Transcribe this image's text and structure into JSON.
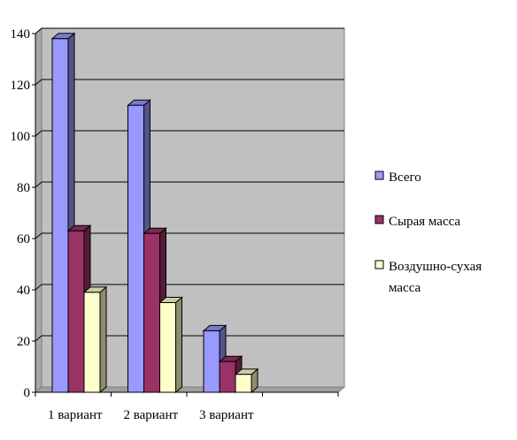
{
  "chart_data": {
    "type": "bar",
    "categories": [
      "1 вариант",
      "2 вариант",
      "3 вариант"
    ],
    "series": [
      {
        "name": "Всего",
        "values": [
          138,
          112,
          24
        ],
        "color": "#9999ff"
      },
      {
        "name": "Сырая масса",
        "values": [
          63,
          62,
          12
        ],
        "color": "#993366"
      },
      {
        "name": "Воздушно-сухая масса",
        "values": [
          39,
          35,
          7
        ],
        "color": "#ffffcc"
      }
    ],
    "legend_lines": [
      [
        "Всего"
      ],
      [
        "Сырая масса"
      ],
      [
        "Воздушно-сухая",
        "масса"
      ]
    ],
    "yticks": [
      "0",
      "20",
      "40",
      "60",
      "80",
      "100",
      "120",
      "140"
    ],
    "ylim": [
      0,
      140
    ],
    "grid": true,
    "legend_position": "right",
    "three_d": true,
    "plot_background": "#c0c0c0",
    "title": "",
    "xlabel": "",
    "ylabel": ""
  }
}
